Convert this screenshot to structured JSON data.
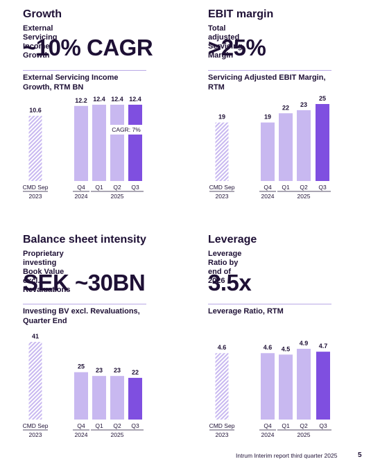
{
  "panels": {
    "growth": {
      "title": "Growth",
      "subtitle": "External Servicing Income Growth",
      "headline": "~10% CAGR",
      "chart_title": [
        "External Servicing Income",
        "Growth, RTM BN"
      ]
    },
    "ebit": {
      "title": "EBIT margin",
      "subtitle": "Total adjusted Servicing Margin",
      "headline": ">25%",
      "chart_title": [
        "Servicing Adjusted EBIT Margin,",
        "RTM"
      ]
    },
    "balance": {
      "title": "Balance sheet intensity",
      "subtitle": [
        "Proprietary investing Book Value",
        "excl. Revaluations"
      ],
      "headline": "SEK ~30BN",
      "chart_title": [
        "Investing BV excl. Revaluations,",
        "Quarter End"
      ]
    },
    "leverage": {
      "title": "Leverage",
      "subtitle": "Leverage Ratio by end of 2026",
      "headline": "3.5x",
      "chart_title": [
        "Leverage Ratio, RTM"
      ]
    }
  },
  "chart_data": [
    {
      "id": "growth",
      "type": "bar",
      "categories": [
        "CMD Sep",
        "Q4",
        "Q1",
        "Q2",
        "Q3"
      ],
      "year_labels": [
        "2023",
        "2024",
        "2025"
      ],
      "values": [
        10.6,
        12.2,
        12.4,
        12.4,
        12.4
      ],
      "value_labels": [
        "10.6",
        "12.2",
        "12.4",
        "12.4",
        "12.4"
      ],
      "ylim": [
        0,
        12.4
      ],
      "annotation": "CAGR: 7%",
      "bar_styles": [
        "hatched",
        "light",
        "light",
        "light",
        "highlight"
      ]
    },
    {
      "id": "ebit",
      "type": "bar",
      "categories": [
        "CMD Sep",
        "Q4",
        "Q1",
        "Q2",
        "Q3"
      ],
      "year_labels": [
        "2023",
        "2024",
        "2025"
      ],
      "values": [
        19,
        19,
        22,
        23,
        25
      ],
      "value_labels": [
        "19",
        "19",
        "22",
        "23",
        "25"
      ],
      "ylim": [
        0,
        25
      ],
      "bar_styles": [
        "hatched",
        "light",
        "light",
        "light",
        "highlight"
      ]
    },
    {
      "id": "balance",
      "type": "bar",
      "categories": [
        "CMD Sep",
        "Q4",
        "Q1",
        "Q2",
        "Q3"
      ],
      "year_labels": [
        "2023",
        "2024",
        "2025"
      ],
      "values": [
        41,
        25,
        23,
        23,
        22
      ],
      "value_labels": [
        "41",
        "25",
        "23",
        "23",
        "22"
      ],
      "ylim": [
        0,
        41
      ],
      "bar_styles": [
        "hatched",
        "light",
        "light",
        "light",
        "highlight"
      ]
    },
    {
      "id": "leverage",
      "type": "bar",
      "categories": [
        "CMD Sep",
        "Q4",
        "Q1",
        "Q2",
        "Q3"
      ],
      "year_labels": [
        "2023",
        "2024",
        "2025"
      ],
      "values": [
        4.6,
        4.6,
        4.5,
        4.9,
        4.7
      ],
      "value_labels": [
        "4.6",
        "4.6",
        "4.5",
        "4.9",
        "4.7"
      ],
      "ylim": [
        0,
        4.9
      ],
      "bar_styles": [
        "hatched",
        "light",
        "light",
        "light",
        "highlight"
      ]
    }
  ],
  "colors": {
    "text": "#1e1035",
    "light_bar": "#c8b8f0",
    "highlight_bar": "#7f4fe0",
    "hatch": "#c8b8f0",
    "rule": "#b9a8e6"
  },
  "footer": {
    "text": "Intrum Interim report third quarter 2025",
    "page": "5"
  }
}
